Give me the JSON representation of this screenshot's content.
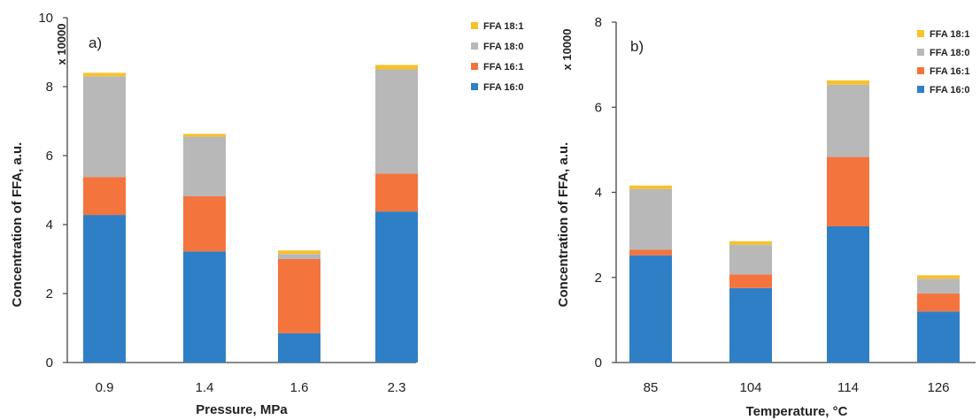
{
  "colors": {
    "FFA 16:0": "#2f7fc6",
    "FFA 16:1": "#f4743e",
    "FFA 18:0": "#b8b8b8",
    "FFA 18:1": "#f7c12c"
  },
  "chart_data": [
    {
      "type": "bar",
      "stacked": true,
      "panel_label": "a)",
      "xlabel": "Pressure, MPa",
      "ylabel": "Concentration of FFA, a.u.",
      "multiplier": "x 10000",
      "categories": [
        "0.9",
        "1.4",
        "1.6",
        "2.3"
      ],
      "ylim": [
        0,
        10
      ],
      "yticks": [
        0,
        2,
        4,
        6,
        8,
        10
      ],
      "legend_position": "top-right",
      "legend": [
        "FFA 18:1",
        "FFA 18:0",
        "FFA 16:1",
        "FFA 16:0"
      ],
      "series": [
        {
          "name": "FFA 16:0",
          "values": [
            4.28,
            3.22,
            0.85,
            4.38
          ]
        },
        {
          "name": "FFA 16:1",
          "values": [
            1.1,
            1.6,
            2.15,
            1.1
          ]
        },
        {
          "name": "FFA 18:0",
          "values": [
            2.92,
            1.73,
            0.15,
            3.02
          ]
        },
        {
          "name": "FFA 18:1",
          "values": [
            0.1,
            0.08,
            0.1,
            0.13
          ]
        }
      ]
    },
    {
      "type": "bar",
      "stacked": true,
      "panel_label": "b)",
      "xlabel": "Temperature, °C",
      "ylabel": "Concentration of FFA, a.u.",
      "multiplier": "x 10000",
      "categories": [
        "85",
        "104",
        "114",
        "126"
      ],
      "ylim": [
        0,
        8
      ],
      "yticks": [
        0,
        2,
        4,
        6,
        8
      ],
      "legend_position": "top-right",
      "legend": [
        "FFA 18:1",
        "FFA 18:0",
        "FFA 16:1",
        "FFA 16:0"
      ],
      "series": [
        {
          "name": "FFA 16:0",
          "values": [
            2.52,
            1.75,
            3.2,
            1.2
          ]
        },
        {
          "name": "FFA 16:1",
          "values": [
            0.13,
            0.32,
            1.63,
            0.42
          ]
        },
        {
          "name": "FFA 18:0",
          "values": [
            1.43,
            0.7,
            1.7,
            0.35
          ]
        },
        {
          "name": "FFA 18:1",
          "values": [
            0.08,
            0.08,
            0.1,
            0.08
          ]
        }
      ]
    }
  ]
}
